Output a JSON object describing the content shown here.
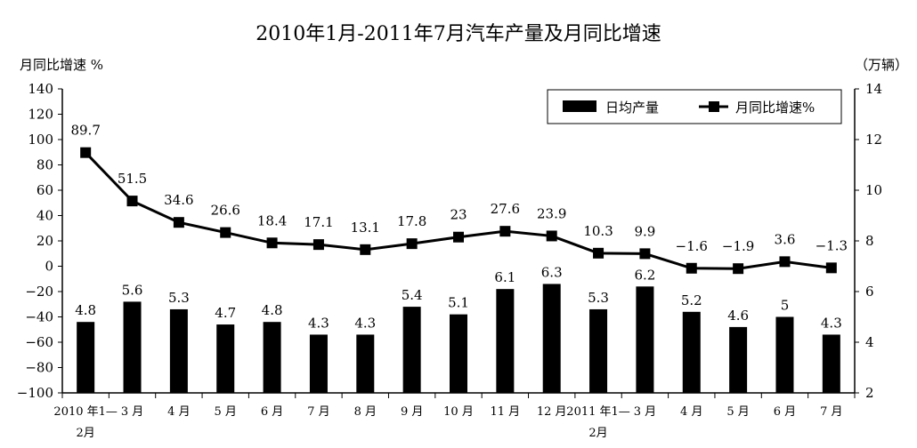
{
  "chart_data": {
    "type": "bar+line",
    "title": "2010年1月-2011年7月汽车产量及月同比增速",
    "y_left_label": "月同比增速 %",
    "y_right_label": "（万辆）",
    "y_left_ticks": [
      "140",
      "120",
      "100",
      "80",
      "60",
      "40",
      "20",
      "0",
      "−20",
      "−40",
      "−60",
      "−80",
      "−100"
    ],
    "y_left_range": [
      -100,
      140
    ],
    "y_right_ticks": [
      "14",
      "12",
      "10",
      "8",
      "6",
      "4",
      "2"
    ],
    "y_right_range": [
      2,
      14
    ],
    "categories": [
      [
        "2010 年1—",
        "2月"
      ],
      [
        "3 月"
      ],
      [
        "4 月"
      ],
      [
        "5 月"
      ],
      [
        "6 月"
      ],
      [
        "7 月"
      ],
      [
        "8 月"
      ],
      [
        "9 月"
      ],
      [
        "10 月"
      ],
      [
        "11 月"
      ],
      [
        "12 月"
      ],
      [
        "2011 年1—",
        "2月"
      ],
      [
        "3 月"
      ],
      [
        "4 月"
      ],
      [
        "5 月"
      ],
      [
        "6 月"
      ],
      [
        "7 月"
      ]
    ],
    "series": [
      {
        "name": "日均产量",
        "type": "bar",
        "axis": "right",
        "color": "#000000",
        "values": [
          4.8,
          5.6,
          5.3,
          4.7,
          4.8,
          4.3,
          4.3,
          5.4,
          5.1,
          6.1,
          6.3,
          5.3,
          6.2,
          5.2,
          4.6,
          5,
          4.3
        ],
        "labels": [
          "4.8",
          "5.6",
          "5.3",
          "4.7",
          "4.8",
          "4.3",
          "4.3",
          "5.4",
          "5.1",
          "6.1",
          "6.3",
          "5.3",
          "6.2",
          "5.2",
          "4.6",
          "5",
          "4.3"
        ]
      },
      {
        "name": "月同比增速%",
        "type": "line",
        "axis": "left",
        "color": "#000000",
        "values": [
          89.7,
          51.5,
          34.6,
          26.6,
          18.4,
          17.1,
          13.1,
          17.8,
          23,
          27.6,
          23.9,
          10.3,
          9.9,
          -1.6,
          -1.9,
          3.6,
          -1.3
        ],
        "labels": [
          "89.7",
          "51.5",
          "34.6",
          "26.6",
          "18.4",
          "17.1",
          "13.1",
          "17.8",
          "23",
          "27.6",
          "23.9",
          "10.3",
          "9.9",
          "−1.6",
          "−1.9",
          "3.6",
          "−1.3"
        ]
      }
    ],
    "legend_position": "top-right",
    "grid": false
  }
}
